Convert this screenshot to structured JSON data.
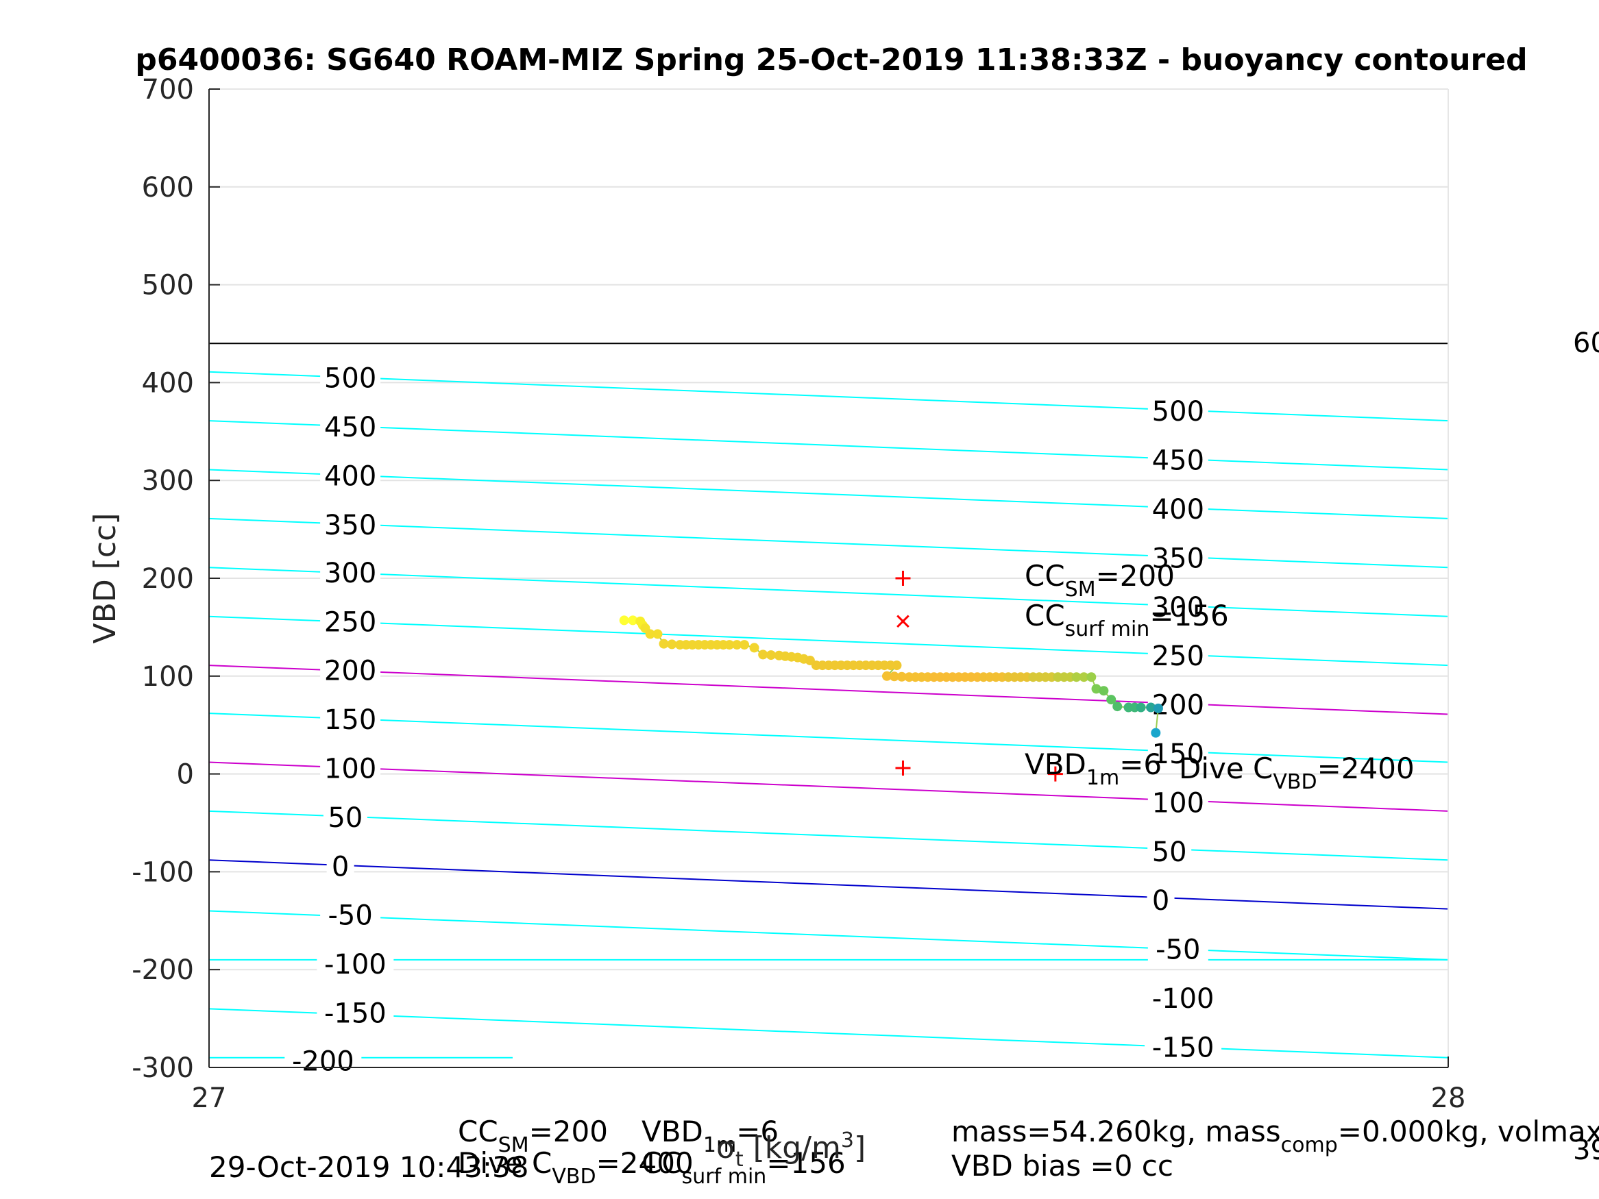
{
  "chart_data": {
    "type": "scatter",
    "title": "p6400036: SG640 ROAM-MIZ Spring 25-Oct-2019 11:38:33Z - buoyancy contoured",
    "xlabel": "σ_t [kg/m^3]",
    "ylabel": "VBD [cc]",
    "xlim": [
      27,
      28
    ],
    "ylim": [
      -300,
      700
    ],
    "x_ticks": [
      "27",
      "28"
    ],
    "y_ticks": [
      "-300",
      "-200",
      "-100",
      "0",
      "100",
      "200",
      "300",
      "400",
      "500",
      "600",
      "700"
    ],
    "grid": true,
    "ceiling_line_vbd": 440,
    "right_clipped_labels": [
      "60",
      "39"
    ],
    "contour_lines": [
      {
        "level": -200,
        "y_left": -290,
        "y_right": -290,
        "color": "#00ffff",
        "partial_to_x": 27.245
      },
      {
        "level": -150,
        "y_left": -240,
        "y_right": -290,
        "color": "#00ffff"
      },
      {
        "level": -100,
        "y_left": -190,
        "y_right": -190,
        "color": "#00ffff"
      },
      {
        "level": -50,
        "y_left": -140,
        "y_right": -190,
        "color": "#00ffff"
      },
      {
        "level": 0,
        "y_left": -88,
        "y_right": -138,
        "color": "#0000cc"
      },
      {
        "level": 50,
        "y_left": -38,
        "y_right": -88,
        "color": "#00ffff"
      },
      {
        "level": 100,
        "y_left": 12,
        "y_right": -38,
        "color": "#cc00cc"
      },
      {
        "level": 150,
        "y_left": 62,
        "y_right": 12,
        "color": "#00ffff"
      },
      {
        "level": 200,
        "y_left": 111,
        "y_right": 61,
        "color": "#cc00cc"
      },
      {
        "level": 250,
        "y_left": 161,
        "y_right": 111,
        "color": "#00ffff"
      },
      {
        "level": 300,
        "y_left": 211,
        "y_right": 161,
        "color": "#00ffff"
      },
      {
        "level": 350,
        "y_left": 261,
        "y_right": 211,
        "color": "#00ffff"
      },
      {
        "level": 400,
        "y_left": 311,
        "y_right": 261,
        "color": "#00ffff"
      },
      {
        "level": 450,
        "y_left": 361,
        "y_right": 311,
        "color": "#00ffff"
      },
      {
        "level": 500,
        "y_left": 411,
        "y_right": 361,
        "color": "#00ffff"
      }
    ],
    "contour_labels_left": [
      {
        "text": "500",
        "x": 27.114,
        "y": 404
      },
      {
        "text": "450",
        "x": 27.114,
        "y": 354
      },
      {
        "text": "400",
        "x": 27.114,
        "y": 304
      },
      {
        "text": "350",
        "x": 27.114,
        "y": 254
      },
      {
        "text": "300",
        "x": 27.114,
        "y": 205
      },
      {
        "text": "250",
        "x": 27.114,
        "y": 155
      },
      {
        "text": "200",
        "x": 27.114,
        "y": 105
      },
      {
        "text": "150",
        "x": 27.114,
        "y": 55
      },
      {
        "text": "100",
        "x": 27.114,
        "y": 5
      },
      {
        "text": "50",
        "x": 27.11,
        "y": -45
      },
      {
        "text": "0",
        "x": 27.106,
        "y": -95
      },
      {
        "text": "-50",
        "x": 27.114,
        "y": -145
      },
      {
        "text": "-100",
        "x": 27.118,
        "y": -195
      },
      {
        "text": "-150",
        "x": 27.118,
        "y": -245
      },
      {
        "text": "-200",
        "x": 27.092,
        "y": -294
      }
    ],
    "contour_labels_right": [
      {
        "text": "500",
        "x": 27.782,
        "y": 370
      },
      {
        "text": "450",
        "x": 27.782,
        "y": 320
      },
      {
        "text": "400",
        "x": 27.782,
        "y": 270
      },
      {
        "text": "350",
        "x": 27.782,
        "y": 220
      },
      {
        "text": "300",
        "x": 27.782,
        "y": 170
      },
      {
        "text": "250",
        "x": 27.782,
        "y": 120
      },
      {
        "text": "200",
        "x": 27.782,
        "y": 70
      },
      {
        "text": "150",
        "x": 27.782,
        "y": 20
      },
      {
        "text": "100",
        "x": 27.782,
        "y": -30
      },
      {
        "text": "50",
        "x": 27.775,
        "y": -80
      },
      {
        "text": "0",
        "x": 27.768,
        "y": -130
      },
      {
        "text": "-50",
        "x": 27.782,
        "y": -180
      },
      {
        "text": "-100",
        "x": 27.786,
        "y": -230
      },
      {
        "text": "-150",
        "x": 27.786,
        "y": -280
      }
    ],
    "markers": [
      {
        "type": "plus",
        "x": 27.56,
        "y": 200,
        "color": "#ff0000"
      },
      {
        "type": "x",
        "x": 27.56,
        "y": 156,
        "color": "#ff0000"
      },
      {
        "type": "plus",
        "x": 27.56,
        "y": 6,
        "color": "#ff0000"
      },
      {
        "type": "plus",
        "x": 27.683,
        "y": 0,
        "color": "#ff0000"
      }
    ],
    "series": [
      {
        "points": [
          {
            "x": 27.335,
            "y": 157,
            "c": "#ffff33"
          },
          {
            "x": 27.342,
            "y": 157,
            "c": "#ffff33"
          },
          {
            "x": 27.348,
            "y": 156,
            "c": "#f8ee2a"
          },
          {
            "x": 27.35,
            "y": 152,
            "c": "#f8ee2a"
          },
          {
            "x": 27.352,
            "y": 149,
            "c": "#f4e22c"
          },
          {
            "x": 27.356,
            "y": 143,
            "c": "#f4dd2c"
          },
          {
            "x": 27.362,
            "y": 143,
            "c": "#f4dd2c"
          },
          {
            "x": 27.367,
            "y": 133,
            "c": "#f2d52e"
          },
          {
            "x": 27.38,
            "y": 132,
            "c": "#f2d52e"
          },
          {
            "x": 27.395,
            "y": 132,
            "c": "#f2d52e"
          },
          {
            "x": 27.41,
            "y": 132,
            "c": "#f2d52e"
          },
          {
            "x": 27.42,
            "y": 132,
            "c": "#f2d52e"
          },
          {
            "x": 27.432,
            "y": 132,
            "c": "#f2d52e"
          },
          {
            "x": 27.44,
            "y": 129,
            "c": "#f2d52e"
          },
          {
            "x": 27.447,
            "y": 122,
            "c": "#f0cf2e"
          },
          {
            "x": 27.46,
            "y": 121,
            "c": "#f0cf2e"
          },
          {
            "x": 27.475,
            "y": 119,
            "c": "#f0cf2e"
          },
          {
            "x": 27.485,
            "y": 116,
            "c": "#f0cb30"
          },
          {
            "x": 27.49,
            "y": 111,
            "c": "#f0c830"
          },
          {
            "x": 27.5,
            "y": 111,
            "c": "#f0c830"
          },
          {
            "x": 27.515,
            "y": 111,
            "c": "#f0c830"
          },
          {
            "x": 27.53,
            "y": 111,
            "c": "#f0c830"
          },
          {
            "x": 27.545,
            "y": 111,
            "c": "#f0c830"
          },
          {
            "x": 27.555,
            "y": 111,
            "c": "#f0c830"
          },
          {
            "x": 27.547,
            "y": 100,
            "c": "#f5c032"
          },
          {
            "x": 27.565,
            "y": 99,
            "c": "#f5c032"
          },
          {
            "x": 27.585,
            "y": 99,
            "c": "#f7bc34"
          },
          {
            "x": 27.605,
            "y": 99,
            "c": "#f7bc34"
          },
          {
            "x": 27.625,
            "y": 99,
            "c": "#f2bf33"
          },
          {
            "x": 27.645,
            "y": 99,
            "c": "#e8c233"
          },
          {
            "x": 27.665,
            "y": 99,
            "c": "#d8c838"
          },
          {
            "x": 27.685,
            "y": 99,
            "c": "#c4cc3c"
          },
          {
            "x": 27.7,
            "y": 99,
            "c": "#b0cf42"
          },
          {
            "x": 27.712,
            "y": 99,
            "c": "#9ccf48"
          },
          {
            "x": 27.716,
            "y": 87,
            "c": "#7ccc52"
          },
          {
            "x": 27.722,
            "y": 85,
            "c": "#6ec856"
          },
          {
            "x": 27.728,
            "y": 76,
            "c": "#5bc460"
          },
          {
            "x": 27.733,
            "y": 69,
            "c": "#4fbe6a"
          },
          {
            "x": 27.742,
            "y": 68,
            "c": "#3fb878"
          },
          {
            "x": 27.752,
            "y": 68,
            "c": "#32b084"
          },
          {
            "x": 27.76,
            "y": 68,
            "c": "#27a694"
          },
          {
            "x": 27.766,
            "y": 67,
            "c": "#1e9cb4"
          },
          {
            "x": 27.764,
            "y": 42,
            "c": "#1aa6cc"
          }
        ]
      }
    ],
    "annotations": {
      "cc_sm": {
        "base": "CC",
        "sub": "SM",
        "rest": "=200"
      },
      "cc_surf_min": {
        "base": "CC",
        "sub": "surf min",
        "rest": "=156"
      },
      "vbd_1m": {
        "base": "VBD",
        "sub": "1m",
        "rest": "=6"
      },
      "dive_cvbd": {
        "base": "Dive C",
        "sub": "VBD",
        "rest": "=2400"
      }
    },
    "footer": {
      "timestamp": "29-Oct-2019 10:43:38",
      "cc_sm": {
        "base": "CC",
        "sub": "SM",
        "rest": "=200"
      },
      "dive_cvbd": {
        "base": "Dive C",
        "sub": "VBD",
        "rest": "=2400"
      },
      "vbd_1m": {
        "base": "VBD",
        "sub": "1m",
        "rest": "=6"
      },
      "cc_surf_min": {
        "base": "CC",
        "sub": "surf min",
        "rest": "=156"
      },
      "mass_line": {
        "a": "mass=54.260kg, mass",
        "sub": "comp",
        "b": "=0.000kg, volmax"
      },
      "vbd_bias": "VBD bias =0 cc"
    }
  }
}
